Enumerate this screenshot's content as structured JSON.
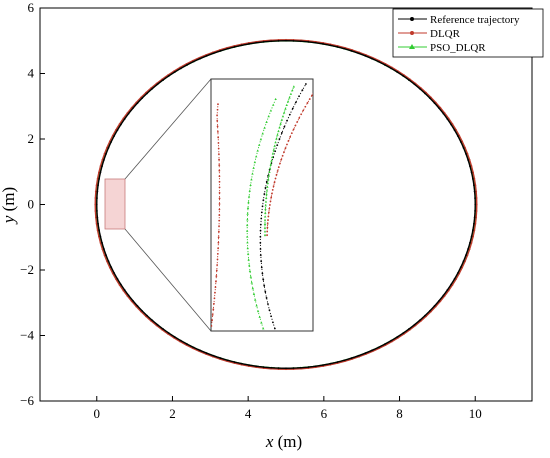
{
  "chart_data": {
    "type": "line",
    "title": "",
    "xlabel_var": "x",
    "xlabel_unit": " (m)",
    "ylabel_var": "y",
    "ylabel_unit": " (m)",
    "xlim": [
      -1.5,
      11.5
    ],
    "ylim": [
      -6,
      6
    ],
    "x_ticks": [
      0,
      2,
      4,
      6,
      8,
      10
    ],
    "y_ticks": [
      -6,
      -4,
      -2,
      0,
      2,
      4,
      6
    ],
    "x_tick_labels": [
      "0",
      "2",
      "4",
      "6",
      "8",
      "10"
    ],
    "y_tick_labels": [
      "−6",
      "−4",
      "−2",
      "0",
      "2",
      "4",
      "6"
    ],
    "legend_position": "top-right",
    "grid": false,
    "series": [
      {
        "name": "Reference trajectory",
        "color": "#000000",
        "marker": "circle",
        "shape": "ellipse",
        "center": [
          5,
          0
        ],
        "semi_axes": [
          5,
          5
        ]
      },
      {
        "name": "DLQR",
        "color": "#c0392b",
        "marker": "circle",
        "shape": "ellipse",
        "center": [
          5,
          0
        ],
        "semi_axes": [
          5.04,
          5.03
        ]
      },
      {
        "name": "PSO_DLQR",
        "color": "#33cc33",
        "marker": "triangle",
        "shape": "ellipse",
        "center": [
          5,
          0
        ],
        "semi_axes": [
          5.02,
          5.01
        ]
      }
    ],
    "inset": {
      "source_xlim": [
        -0.2,
        0.3
      ],
      "source_ylim": [
        -0.7,
        0.8
      ],
      "zoomed_xlim": [
        -0.2,
        0.3
      ],
      "zoomed_ylim": [
        -0.7,
        0.8
      ]
    }
  },
  "legend": {
    "items": [
      {
        "label": "Reference trajectory",
        "color": "#000000"
      },
      {
        "label": "DLQR",
        "color": "#c0392b"
      },
      {
        "label": "PSO_DLQR",
        "color": "#33cc33"
      }
    ]
  }
}
